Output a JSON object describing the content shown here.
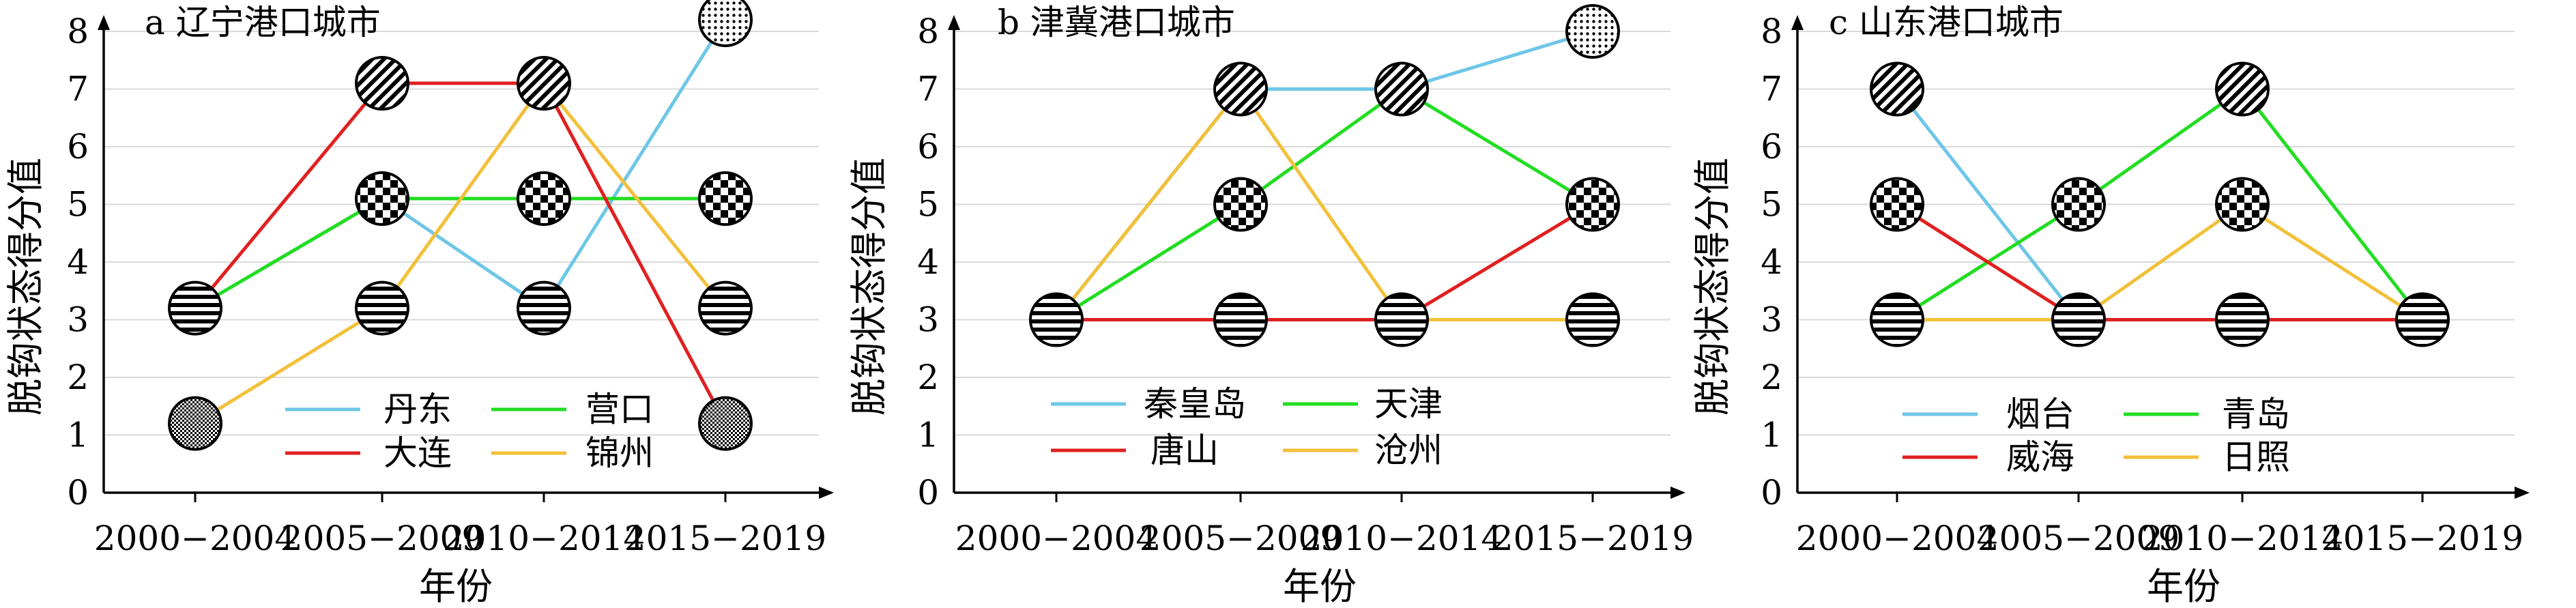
{
  "chart_data": [
    {
      "type": "line",
      "title": "a 辽宁港口城市",
      "xlabel": "年份",
      "ylabel": "脱钩状态得分值",
      "categories": [
        "2000−2004",
        "2005−2009",
        "2010−2014",
        "2015−2019"
      ],
      "y_ticks": [
        "0",
        "1",
        "2",
        "3",
        "4",
        "5",
        "6",
        "7",
        "8"
      ],
      "ylim": [
        0,
        8.4
      ],
      "grid": "horizontal",
      "legend_position": "bottom-right",
      "series": [
        {
          "name": "丹东",
          "color": "#6EC6E8",
          "values": [
            3.2,
            5.1,
            3.2,
            8.2
          ]
        },
        {
          "name": "营口",
          "color": "#22DD22",
          "values": [
            3.2,
            5.1,
            5.1,
            5.1
          ]
        },
        {
          "name": "大连",
          "color": "#E02020",
          "values": [
            3.2,
            7.1,
            7.1,
            1.2
          ]
        },
        {
          "name": "锦州",
          "color": "#F2C03A",
          "values": [
            1.2,
            3.2,
            7.1,
            3.2
          ]
        }
      ],
      "markers": [
        {
          "category_index": 0,
          "value": 3.2,
          "pattern": "horizontal"
        },
        {
          "category_index": 0,
          "value": 1.2,
          "pattern": "dense"
        },
        {
          "category_index": 1,
          "value": 7.1,
          "pattern": "diagonal"
        },
        {
          "category_index": 1,
          "value": 5.1,
          "pattern": "checker"
        },
        {
          "category_index": 1,
          "value": 3.2,
          "pattern": "horizontal"
        },
        {
          "category_index": 2,
          "value": 7.1,
          "pattern": "diagonal"
        },
        {
          "category_index": 2,
          "value": 5.1,
          "pattern": "checker"
        },
        {
          "category_index": 2,
          "value": 3.2,
          "pattern": "horizontal"
        },
        {
          "category_index": 3,
          "value": 8.2,
          "pattern": "dots"
        },
        {
          "category_index": 3,
          "value": 5.1,
          "pattern": "checker"
        },
        {
          "category_index": 3,
          "value": 3.2,
          "pattern": "horizontal"
        },
        {
          "category_index": 3,
          "value": 1.2,
          "pattern": "dense"
        }
      ]
    },
    {
      "type": "line",
      "title": "b 津冀港口城市",
      "xlabel": "年份",
      "ylabel": "脱钩状态得分值",
      "categories": [
        "2000−2004",
        "2005−2009",
        "2010−2014",
        "2015−2019"
      ],
      "y_ticks": [
        "0",
        "1",
        "2",
        "3",
        "4",
        "5",
        "6",
        "7",
        "8"
      ],
      "ylim": [
        0,
        8.4
      ],
      "grid": "horizontal",
      "legend_position": "bottom-left",
      "series": [
        {
          "name": "秦皇岛",
          "color": "#6EC6E8",
          "values": [
            3,
            7,
            7,
            8
          ]
        },
        {
          "name": "天津",
          "color": "#22DD22",
          "values": [
            3,
            5,
            7,
            5
          ]
        },
        {
          "name": "唐山",
          "color": "#E02020",
          "values": [
            3,
            3,
            3,
            5
          ]
        },
        {
          "name": "沧州",
          "color": "#F2C03A",
          "values": [
            3,
            7,
            3,
            3
          ]
        }
      ],
      "markers": [
        {
          "category_index": 0,
          "value": 3,
          "pattern": "horizontal"
        },
        {
          "category_index": 1,
          "value": 7,
          "pattern": "diagonal"
        },
        {
          "category_index": 1,
          "value": 5,
          "pattern": "checker"
        },
        {
          "category_index": 1,
          "value": 3,
          "pattern": "horizontal"
        },
        {
          "category_index": 2,
          "value": 7,
          "pattern": "diagonal"
        },
        {
          "category_index": 2,
          "value": 3,
          "pattern": "horizontal"
        },
        {
          "category_index": 3,
          "value": 8,
          "pattern": "dots"
        },
        {
          "category_index": 3,
          "value": 5,
          "pattern": "checker"
        },
        {
          "category_index": 3,
          "value": 3,
          "pattern": "horizontal"
        }
      ]
    },
    {
      "type": "line",
      "title": "c 山东港口城市",
      "xlabel": "年份",
      "ylabel": "脱钩状态得分值",
      "categories": [
        "2000−2004",
        "2005−2009",
        "2010−2014",
        "2015−2019"
      ],
      "y_ticks": [
        "0",
        "1",
        "2",
        "3",
        "4",
        "5",
        "6",
        "7",
        "8"
      ],
      "ylim": [
        0,
        8.4
      ],
      "grid": "horizontal",
      "legend_position": "bottom-left",
      "series": [
        {
          "name": "烟台",
          "color": "#6EC6E8",
          "values": [
            7,
            3,
            3,
            3
          ]
        },
        {
          "name": "青岛",
          "color": "#22DD22",
          "values": [
            3,
            5,
            7,
            3
          ]
        },
        {
          "name": "威海",
          "color": "#E02020",
          "values": [
            5,
            3,
            3,
            3
          ]
        },
        {
          "name": "日照",
          "color": "#F2C03A",
          "values": [
            3,
            3,
            5,
            3
          ]
        }
      ],
      "markers": [
        {
          "category_index": 0,
          "value": 7,
          "pattern": "diagonal"
        },
        {
          "category_index": 0,
          "value": 5,
          "pattern": "checker"
        },
        {
          "category_index": 0,
          "value": 3,
          "pattern": "horizontal"
        },
        {
          "category_index": 1,
          "value": 5,
          "pattern": "checker"
        },
        {
          "category_index": 1,
          "value": 3,
          "pattern": "horizontal"
        },
        {
          "category_index": 2,
          "value": 7,
          "pattern": "diagonal"
        },
        {
          "category_index": 2,
          "value": 5,
          "pattern": "checker"
        },
        {
          "category_index": 2,
          "value": 3,
          "pattern": "horizontal"
        },
        {
          "category_index": 3,
          "value": 3,
          "pattern": "horizontal"
        }
      ]
    }
  ]
}
